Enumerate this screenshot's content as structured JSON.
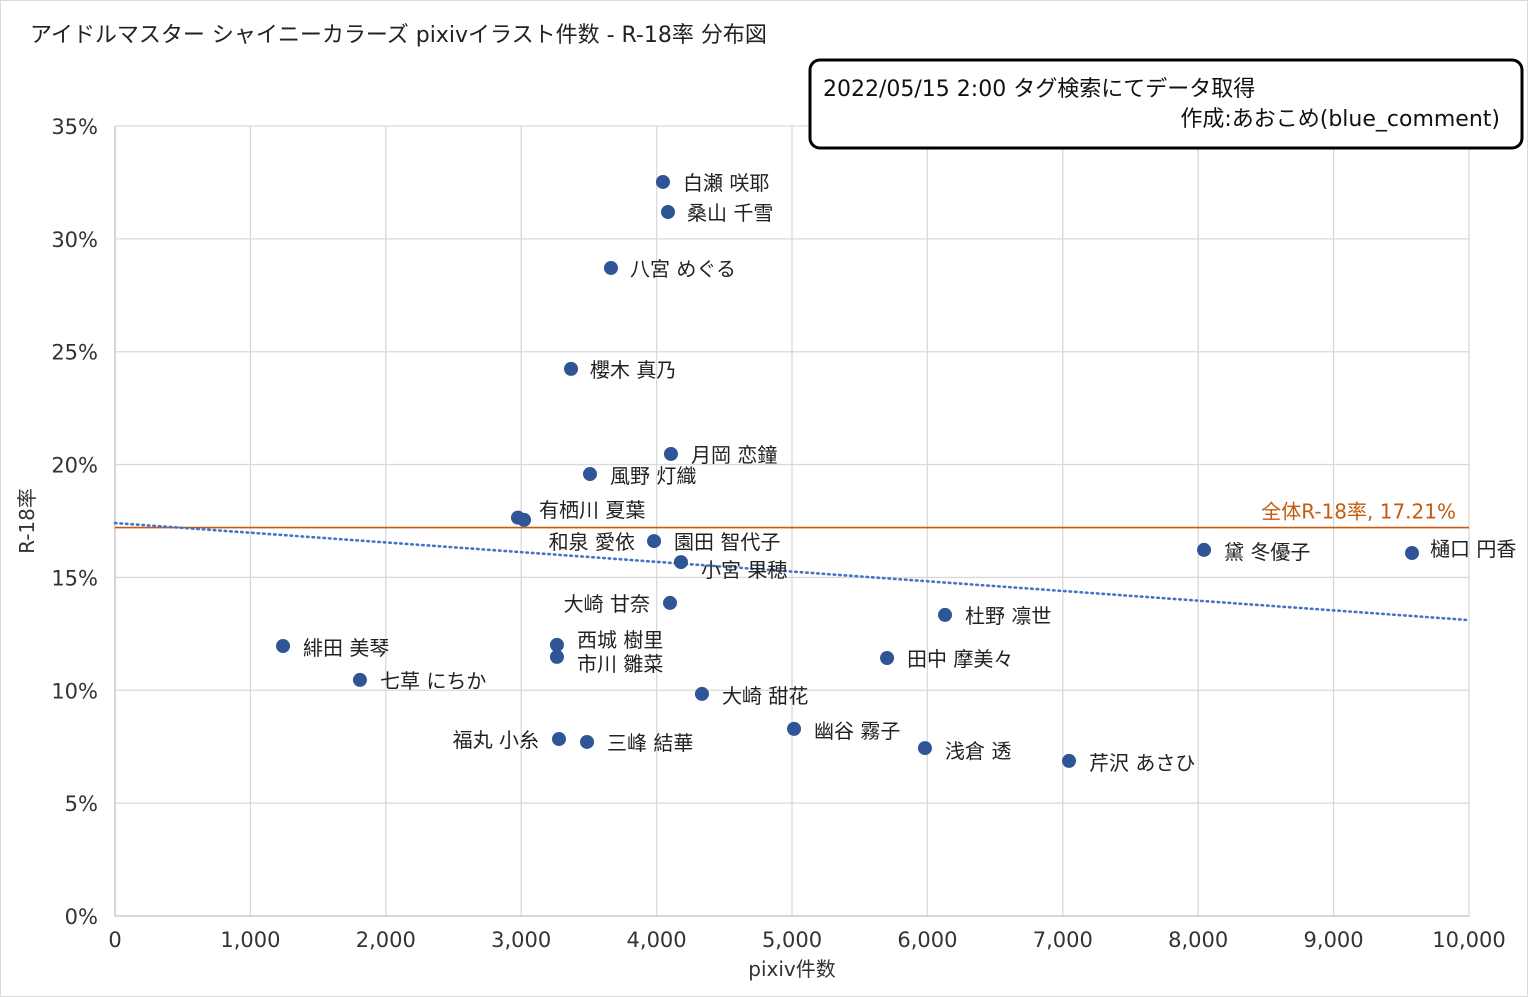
{
  "chart_data": {
    "type": "scatter",
    "title": "アイドルマスター シャイニーカラーズ  pixivイラスト件数 - R-18率 分布図",
    "note_line1": "2022/05/15 2:00  タグ検索にてデータ取得",
    "note_line2": "作成:あおこめ(blue_comment)",
    "xlabel": "pixiv件数",
    "ylabel": "R-18率",
    "xlim": [
      0,
      10000
    ],
    "ylim": [
      0,
      35
    ],
    "x_ticks": [
      "0",
      "1,000",
      "2,000",
      "3,000",
      "4,000",
      "5,000",
      "6,000",
      "7,000",
      "8,000",
      "9,000",
      "10,000"
    ],
    "y_ticks": [
      "0%",
      "5%",
      "10%",
      "15%",
      "20%",
      "25%",
      "30%",
      "35%"
    ],
    "grid": true,
    "reference_line": {
      "label": "全体R-18率, 17.21%",
      "value": 17.21,
      "color": "#c55a11"
    },
    "trendline": {
      "type": "linear",
      "y_at_x0": 17.41,
      "y_at_x10000": 13.11,
      "color": "#4472c4"
    },
    "point_color": "#2f5597",
    "points": [
      {
        "name": "白瀬 咲耶",
        "x": 4047,
        "y": 32.52
      },
      {
        "name": "桑山 千雪",
        "x": 4084,
        "y": 31.19
      },
      {
        "name": "八宮 めぐる",
        "x": 3663,
        "y": 28.71
      },
      {
        "name": "櫻木 真乃",
        "x": 3368,
        "y": 24.24
      },
      {
        "name": "月岡 恋鐘",
        "x": 4106,
        "y": 20.47
      },
      {
        "name": "風野 灯織",
        "x": 3508,
        "y": 19.58
      },
      {
        "name": "有栖川 夏葉",
        "x": 2976,
        "y": 17.65
      },
      {
        "name": "和泉 愛依",
        "x": 3021,
        "y": 17.55
      },
      {
        "name": "園田 智代子",
        "x": 3981,
        "y": 16.61
      },
      {
        "name": "小宮 果穂",
        "x": 4180,
        "y": 15.68
      },
      {
        "name": "大崎 甘奈",
        "x": 4099,
        "y": 13.87
      },
      {
        "name": "黛 冬優子",
        "x": 8043,
        "y": 16.22
      },
      {
        "name": "樋口 円香",
        "x": 9579,
        "y": 16.08
      },
      {
        "name": "杜野 凛世",
        "x": 6130,
        "y": 13.34
      },
      {
        "name": "緋田 美琴",
        "x": 1241,
        "y": 11.96
      },
      {
        "name": "西城 樹里",
        "x": 3264,
        "y": 12.01
      },
      {
        "name": "市川 雛菜",
        "x": 3264,
        "y": 11.48
      },
      {
        "name": "田中 摩美々",
        "x": 5702,
        "y": 11.43
      },
      {
        "name": "七草 にちか",
        "x": 1809,
        "y": 10.46
      },
      {
        "name": "大崎 甜花",
        "x": 4335,
        "y": 9.84
      },
      {
        "name": "幽谷 霧子",
        "x": 5015,
        "y": 8.29
      },
      {
        "name": "福丸 小糸",
        "x": 3279,
        "y": 7.84
      },
      {
        "name": "三峰 結華",
        "x": 3486,
        "y": 7.71
      },
      {
        "name": "浅倉 透",
        "x": 5982,
        "y": 7.44
      },
      {
        "name": "芹沢 あさひ",
        "x": 7046,
        "y": 6.87
      }
    ]
  }
}
